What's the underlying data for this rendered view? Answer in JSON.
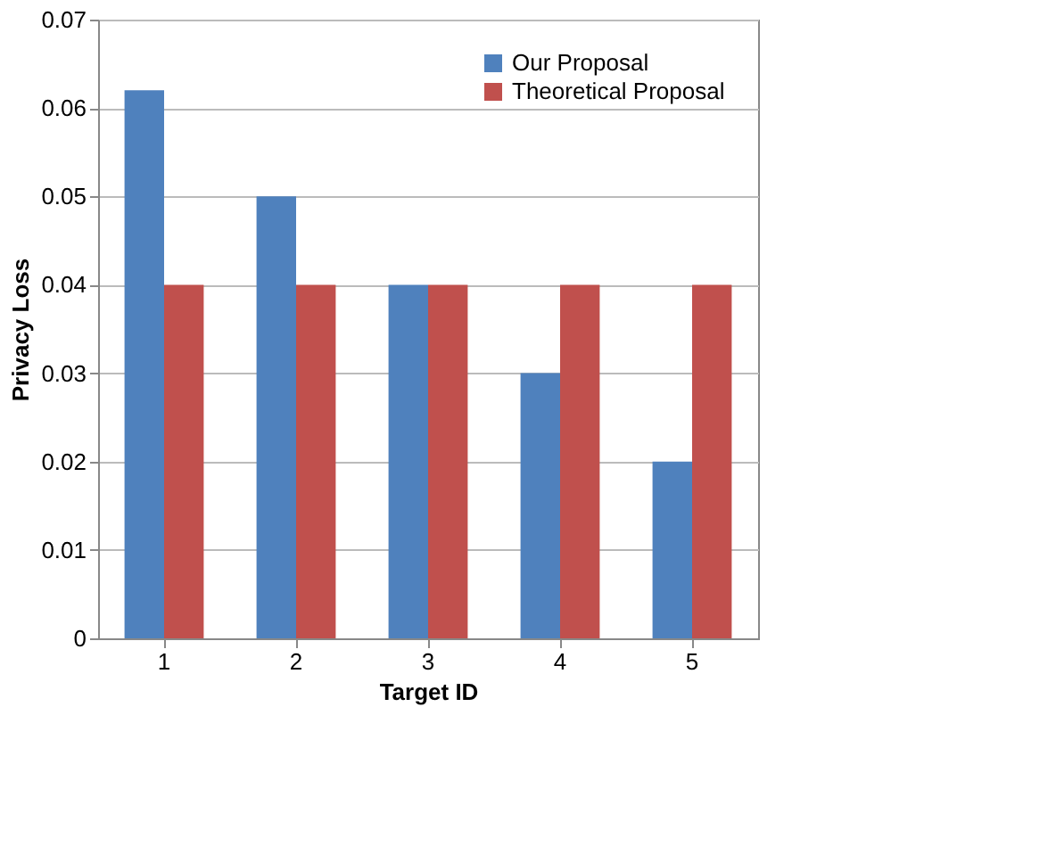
{
  "chart_data": {
    "type": "bar",
    "xlabel": "Target ID",
    "ylabel": "Privacy Loss",
    "categories": [
      "1",
      "2",
      "3",
      "4",
      "5"
    ],
    "series": [
      {
        "name": "Our Proposal",
        "color": "#4f81bd",
        "values": [
          0.062,
          0.05,
          0.04,
          0.03,
          0.02
        ]
      },
      {
        "name": "Theoretical Proposal",
        "color": "#c0504d",
        "values": [
          0.04,
          0.04,
          0.04,
          0.04,
          0.04
        ]
      }
    ],
    "ylim": [
      0,
      0.07
    ],
    "yticks": [
      {
        "value": 0,
        "label": "0"
      },
      0.01,
      0.02,
      0.03,
      0.04,
      0.05,
      0.06,
      0.07
    ],
    "grid": "y",
    "legend": "top right"
  }
}
